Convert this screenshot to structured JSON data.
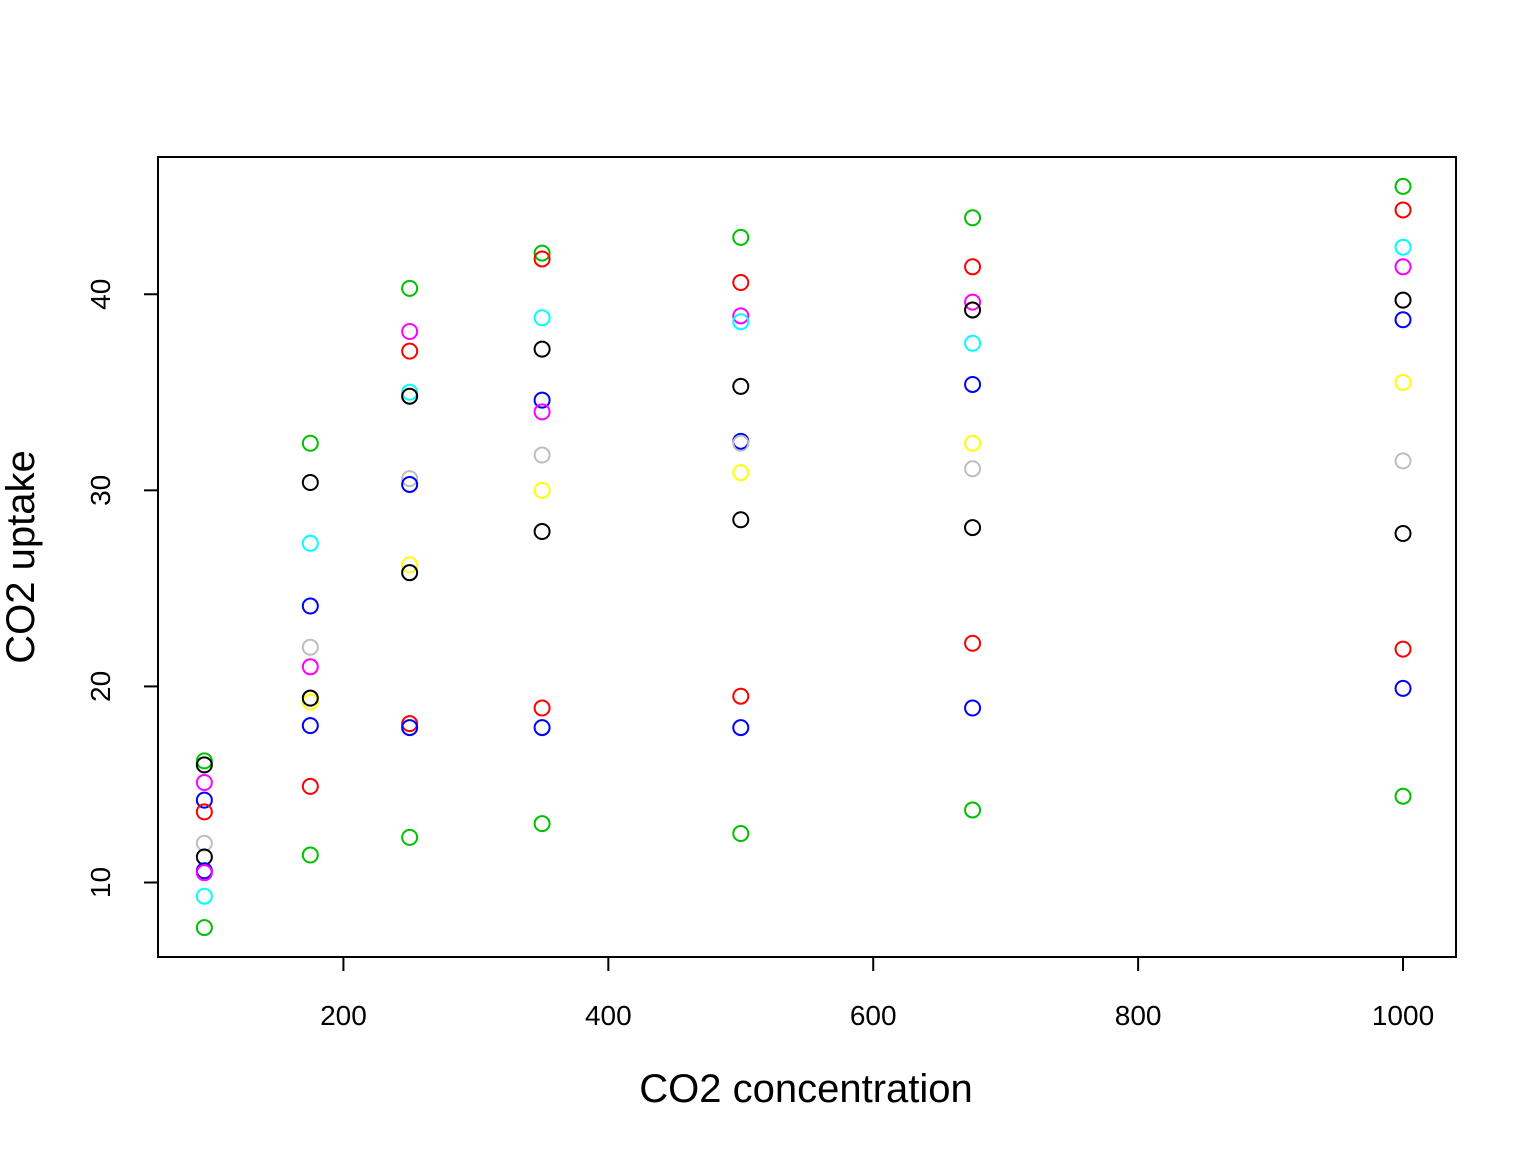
{
  "chart_data": {
    "type": "scatter",
    "title": "",
    "xlabel": "CO2 concentration",
    "ylabel": "CO2 uptake",
    "xlim": [
      60,
      1040
    ],
    "ylim": [
      6.2,
      47.0
    ],
    "x_ticks": [
      200,
      400,
      600,
      800,
      1000
    ],
    "y_ticks": [
      10,
      20,
      30,
      40
    ],
    "grid": false,
    "legend": "none",
    "marker": "open-circle",
    "points": [
      {
        "x": 95,
        "y": 16.2,
        "color": "#00c000"
      },
      {
        "x": 95,
        "y": 16.0,
        "color": "#000000"
      },
      {
        "x": 95,
        "y": 15.1,
        "color": "#ff00ff"
      },
      {
        "x": 95,
        "y": 14.2,
        "color": "#0000ff"
      },
      {
        "x": 95,
        "y": 13.6,
        "color": "#ff0000"
      },
      {
        "x": 95,
        "y": 12.0,
        "color": "#bebebe"
      },
      {
        "x": 95,
        "y": 11.3,
        "color": "#000000"
      },
      {
        "x": 95,
        "y": 10.6,
        "color": "#0000ff"
      },
      {
        "x": 95,
        "y": 10.5,
        "color": "#ff00ff"
      },
      {
        "x": 95,
        "y": 9.3,
        "color": "#00ffff"
      },
      {
        "x": 95,
        "y": 7.7,
        "color": "#00c000"
      },
      {
        "x": 175,
        "y": 32.4,
        "color": "#00c000"
      },
      {
        "x": 175,
        "y": 30.4,
        "color": "#000000"
      },
      {
        "x": 175,
        "y": 27.3,
        "color": "#00ffff"
      },
      {
        "x": 175,
        "y": 24.1,
        "color": "#0000ff"
      },
      {
        "x": 175,
        "y": 22.0,
        "color": "#bebebe"
      },
      {
        "x": 175,
        "y": 21.0,
        "color": "#ff00ff"
      },
      {
        "x": 175,
        "y": 19.2,
        "color": "#ffff00"
      },
      {
        "x": 175,
        "y": 19.4,
        "color": "#000000"
      },
      {
        "x": 175,
        "y": 18.0,
        "color": "#0000ff"
      },
      {
        "x": 175,
        "y": 14.9,
        "color": "#ff0000"
      },
      {
        "x": 175,
        "y": 11.4,
        "color": "#00c000"
      },
      {
        "x": 250,
        "y": 40.3,
        "color": "#00c000"
      },
      {
        "x": 250,
        "y": 38.1,
        "color": "#ff00ff"
      },
      {
        "x": 250,
        "y": 37.1,
        "color": "#ff0000"
      },
      {
        "x": 250,
        "y": 35.0,
        "color": "#00ffff"
      },
      {
        "x": 250,
        "y": 34.8,
        "color": "#000000"
      },
      {
        "x": 250,
        "y": 30.6,
        "color": "#bebebe"
      },
      {
        "x": 250,
        "y": 30.3,
        "color": "#0000ff"
      },
      {
        "x": 250,
        "y": 26.2,
        "color": "#ffff00"
      },
      {
        "x": 250,
        "y": 25.8,
        "color": "#000000"
      },
      {
        "x": 250,
        "y": 18.1,
        "color": "#ff0000"
      },
      {
        "x": 250,
        "y": 17.9,
        "color": "#0000ff"
      },
      {
        "x": 250,
        "y": 12.3,
        "color": "#00c000"
      },
      {
        "x": 350,
        "y": 42.1,
        "color": "#00c000"
      },
      {
        "x": 350,
        "y": 41.8,
        "color": "#ff0000"
      },
      {
        "x": 350,
        "y": 38.8,
        "color": "#00ffff"
      },
      {
        "x": 350,
        "y": 37.2,
        "color": "#000000"
      },
      {
        "x": 350,
        "y": 34.6,
        "color": "#0000ff"
      },
      {
        "x": 350,
        "y": 34.0,
        "color": "#ff00ff"
      },
      {
        "x": 350,
        "y": 31.8,
        "color": "#bebebe"
      },
      {
        "x": 350,
        "y": 30.0,
        "color": "#ffff00"
      },
      {
        "x": 350,
        "y": 27.9,
        "color": "#000000"
      },
      {
        "x": 350,
        "y": 18.9,
        "color": "#ff0000"
      },
      {
        "x": 350,
        "y": 17.9,
        "color": "#0000ff"
      },
      {
        "x": 350,
        "y": 13.0,
        "color": "#00c000"
      },
      {
        "x": 500,
        "y": 42.9,
        "color": "#00c000"
      },
      {
        "x": 500,
        "y": 40.6,
        "color": "#ff0000"
      },
      {
        "x": 500,
        "y": 38.9,
        "color": "#ff00ff"
      },
      {
        "x": 500,
        "y": 38.6,
        "color": "#00ffff"
      },
      {
        "x": 500,
        "y": 35.3,
        "color": "#000000"
      },
      {
        "x": 500,
        "y": 32.5,
        "color": "#0000ff"
      },
      {
        "x": 500,
        "y": 32.4,
        "color": "#bebebe"
      },
      {
        "x": 500,
        "y": 30.9,
        "color": "#ffff00"
      },
      {
        "x": 500,
        "y": 28.5,
        "color": "#000000"
      },
      {
        "x": 500,
        "y": 19.5,
        "color": "#ff0000"
      },
      {
        "x": 500,
        "y": 17.9,
        "color": "#0000ff"
      },
      {
        "x": 500,
        "y": 12.5,
        "color": "#00c000"
      },
      {
        "x": 675,
        "y": 43.9,
        "color": "#00c000"
      },
      {
        "x": 675,
        "y": 41.4,
        "color": "#ff0000"
      },
      {
        "x": 675,
        "y": 39.6,
        "color": "#ff00ff"
      },
      {
        "x": 675,
        "y": 39.2,
        "color": "#000000"
      },
      {
        "x": 675,
        "y": 37.5,
        "color": "#00ffff"
      },
      {
        "x": 675,
        "y": 35.4,
        "color": "#0000ff"
      },
      {
        "x": 675,
        "y": 32.4,
        "color": "#ffff00"
      },
      {
        "x": 675,
        "y": 31.1,
        "color": "#bebebe"
      },
      {
        "x": 675,
        "y": 28.1,
        "color": "#000000"
      },
      {
        "x": 675,
        "y": 22.2,
        "color": "#ff0000"
      },
      {
        "x": 675,
        "y": 18.9,
        "color": "#0000ff"
      },
      {
        "x": 675,
        "y": 13.7,
        "color": "#00c000"
      },
      {
        "x": 1000,
        "y": 45.5,
        "color": "#00c000"
      },
      {
        "x": 1000,
        "y": 44.3,
        "color": "#ff0000"
      },
      {
        "x": 1000,
        "y": 42.4,
        "color": "#00ffff"
      },
      {
        "x": 1000,
        "y": 41.4,
        "color": "#ff00ff"
      },
      {
        "x": 1000,
        "y": 39.7,
        "color": "#000000"
      },
      {
        "x": 1000,
        "y": 38.7,
        "color": "#0000ff"
      },
      {
        "x": 1000,
        "y": 35.5,
        "color": "#ffff00"
      },
      {
        "x": 1000,
        "y": 31.5,
        "color": "#bebebe"
      },
      {
        "x": 1000,
        "y": 27.8,
        "color": "#000000"
      },
      {
        "x": 1000,
        "y": 21.9,
        "color": "#ff0000"
      },
      {
        "x": 1000,
        "y": 19.9,
        "color": "#0000ff"
      },
      {
        "x": 1000,
        "y": 14.4,
        "color": "#00c000"
      }
    ]
  }
}
